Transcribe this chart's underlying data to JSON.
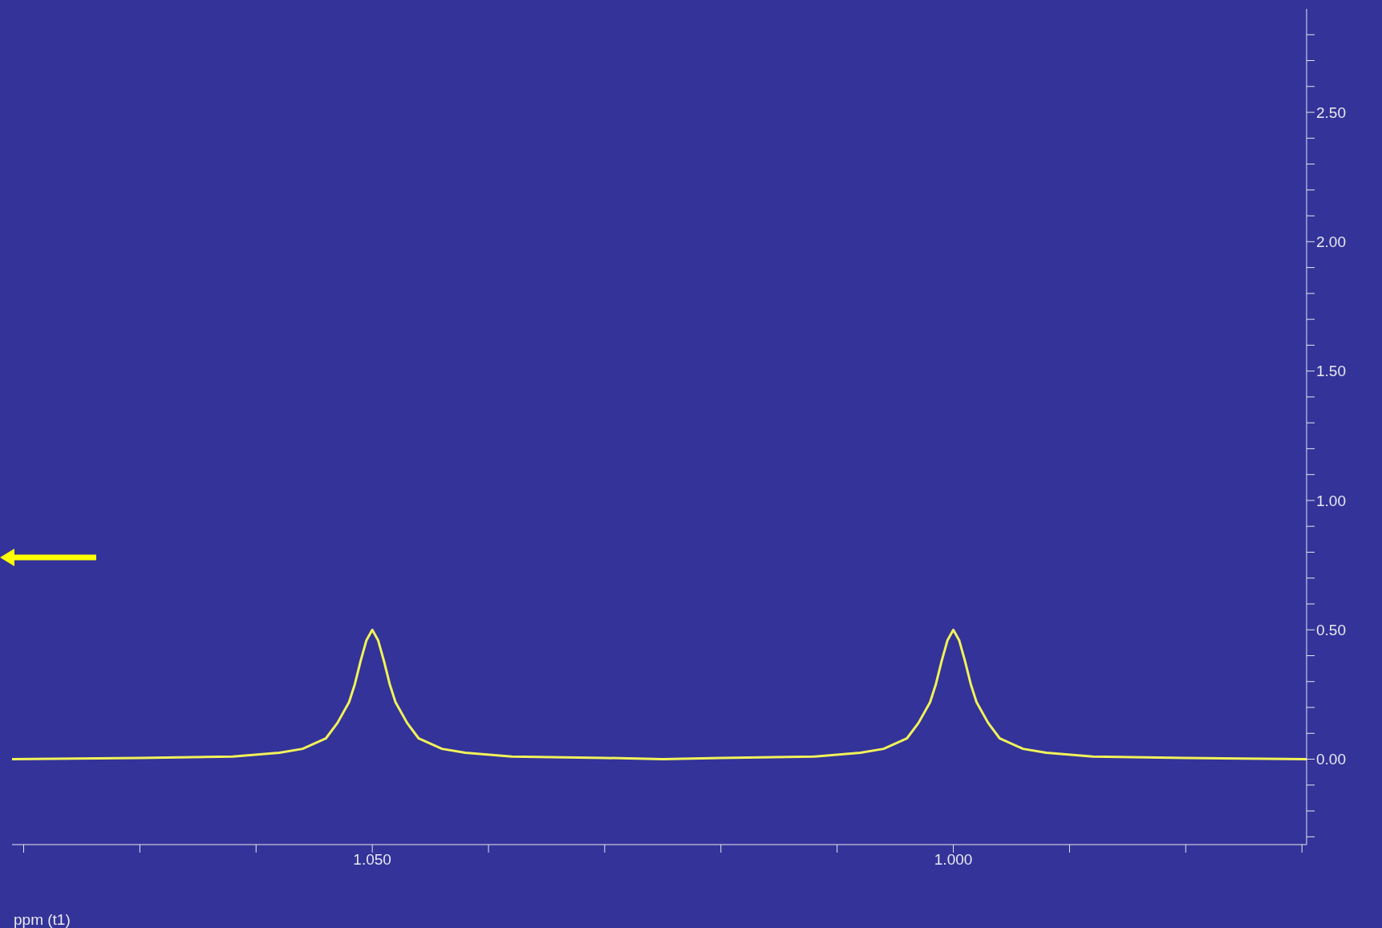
{
  "chart_data": {
    "type": "line",
    "xlabel": "ppm (t1)",
    "color": "#f2f25a",
    "marker": "none",
    "x": [
      1.081,
      1.07,
      1.062,
      1.058,
      1.056,
      1.054,
      1.053,
      1.052,
      1.0515,
      1.051,
      1.0505,
      1.05,
      1.0495,
      1.049,
      1.0485,
      1.048,
      1.047,
      1.046,
      1.044,
      1.042,
      1.038,
      1.03,
      1.025,
      1.02,
      1.012,
      1.008,
      1.006,
      1.004,
      1.003,
      1.002,
      1.0015,
      1.001,
      1.0005,
      1.0,
      0.9995,
      0.999,
      0.9985,
      0.998,
      0.997,
      0.996,
      0.994,
      0.992,
      0.988,
      0.98,
      0.9696
    ],
    "values": [
      0.0,
      0.005,
      0.01,
      0.025,
      0.04,
      0.08,
      0.14,
      0.22,
      0.29,
      0.38,
      0.46,
      0.5,
      0.46,
      0.38,
      0.29,
      0.22,
      0.14,
      0.08,
      0.04,
      0.025,
      0.01,
      0.005,
      0.0,
      0.005,
      0.01,
      0.025,
      0.04,
      0.08,
      0.14,
      0.22,
      0.29,
      0.38,
      0.46,
      0.5,
      0.46,
      0.38,
      0.29,
      0.22,
      0.14,
      0.08,
      0.04,
      0.025,
      0.01,
      0.005,
      0.0
    ],
    "xlim": [
      1.081,
      0.9696
    ],
    "xticks": [
      {
        "value": 1.08,
        "label": null
      },
      {
        "value": 1.07,
        "label": null
      },
      {
        "value": 1.06,
        "label": null
      },
      {
        "value": 1.05,
        "label": "1.050"
      },
      {
        "value": 1.04,
        "label": null
      },
      {
        "value": 1.03,
        "label": null
      },
      {
        "value": 1.02,
        "label": null
      },
      {
        "value": 1.01,
        "label": null
      },
      {
        "value": 1.0,
        "label": "1.000"
      },
      {
        "value": 0.99,
        "label": null
      },
      {
        "value": 0.98,
        "label": null
      },
      {
        "value": 0.97,
        "label": null
      }
    ],
    "ylim": [
      -0.33,
      2.9
    ],
    "yticks": [
      {
        "value": -0.3,
        "label": null
      },
      {
        "value": -0.2,
        "label": null
      },
      {
        "value": -0.1,
        "label": null
      },
      {
        "value": 0,
        "label": "0.00"
      },
      {
        "value": 0.1,
        "label": null
      },
      {
        "value": 0.2,
        "label": null
      },
      {
        "value": 0.3,
        "label": null
      },
      {
        "value": 0.4,
        "label": null
      },
      {
        "value": 0.5,
        "label": "0.50"
      },
      {
        "value": 0.6,
        "label": null
      },
      {
        "value": 0.7,
        "label": null
      },
      {
        "value": 0.8,
        "label": null
      },
      {
        "value": 0.9,
        "label": null
      },
      {
        "value": 1.0,
        "label": "1.00"
      },
      {
        "value": 1.1,
        "label": null
      },
      {
        "value": 1.2,
        "label": null
      },
      {
        "value": 1.3,
        "label": null
      },
      {
        "value": 1.4,
        "label": null
      },
      {
        "value": 1.5,
        "label": "1.50"
      },
      {
        "value": 1.6,
        "label": null
      },
      {
        "value": 1.7,
        "label": null
      },
      {
        "value": 1.8,
        "label": null
      },
      {
        "value": 1.9,
        "label": null
      },
      {
        "value": 2.0,
        "label": "2.00"
      },
      {
        "value": 2.1,
        "label": null
      },
      {
        "value": 2.2,
        "label": null
      },
      {
        "value": 2.3,
        "label": null
      },
      {
        "value": 2.4,
        "label": null
      },
      {
        "value": 2.5,
        "label": "2.50"
      },
      {
        "value": 2.6,
        "label": null
      },
      {
        "value": 2.7,
        "label": null
      },
      {
        "value": 2.8,
        "label": null
      }
    ]
  }
}
